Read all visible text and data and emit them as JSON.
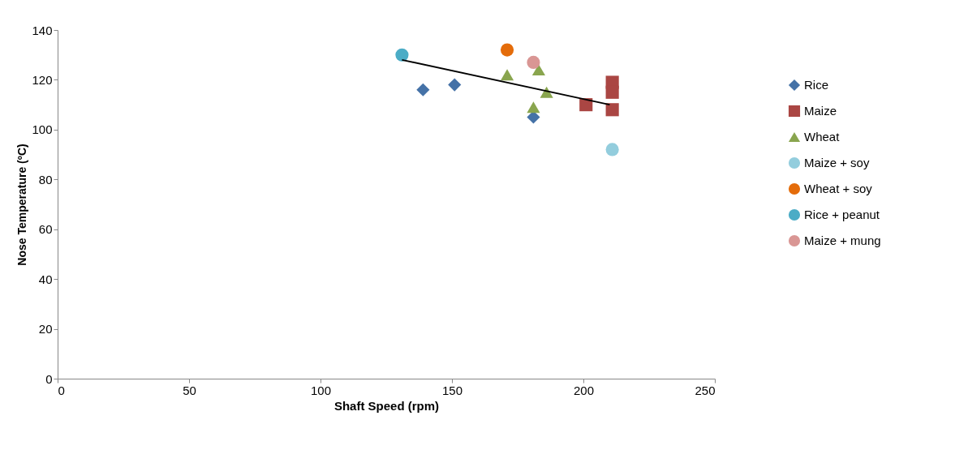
{
  "chart_data": {
    "type": "scatter",
    "xlabel": "Shaft Speed (rpm)",
    "ylabel": "Nose Temperature (ºC)",
    "xlim": [
      0,
      250
    ],
    "xticks": [
      0,
      50,
      100,
      150,
      200,
      250
    ],
    "ylim": [
      0,
      140
    ],
    "yticks": [
      0,
      20,
      40,
      60,
      80,
      100,
      120,
      140
    ],
    "grid": false,
    "legend": "right",
    "series": [
      {
        "name": "Rice",
        "marker": "diamond",
        "color": "#4572a7",
        "x": [
          139,
          151,
          181
        ],
        "values": [
          116,
          118,
          105
        ]
      },
      {
        "name": "Maize",
        "marker": "square",
        "color": "#aa4643",
        "x": [
          201,
          211,
          211,
          211
        ],
        "values": [
          110,
          119,
          115,
          108
        ]
      },
      {
        "name": "Wheat",
        "marker": "triangle",
        "color": "#89a54e",
        "x": [
          171,
          183,
          186,
          181
        ],
        "values": [
          122,
          124,
          115,
          109
        ]
      },
      {
        "name": "Maize + soy",
        "marker": "circle",
        "color": "#93cddd",
        "x": [
          211
        ],
        "values": [
          92
        ]
      },
      {
        "name": "Wheat + soy",
        "marker": "circle",
        "color": "#e46c0a",
        "x": [
          171
        ],
        "values": [
          132
        ]
      },
      {
        "name": "Rice + peanut",
        "marker": "circle",
        "color": "#4bacc6",
        "x": [
          131
        ],
        "values": [
          130
        ]
      },
      {
        "name": "Maize + mung",
        "marker": "circle",
        "color": "#d99694",
        "x": [
          181
        ],
        "values": [
          127
        ]
      },
      {
        "type": "line",
        "marker": "none",
        "color": "#000000",
        "x": [
          131,
          210
        ],
        "values": [
          128,
          110
        ]
      }
    ]
  }
}
